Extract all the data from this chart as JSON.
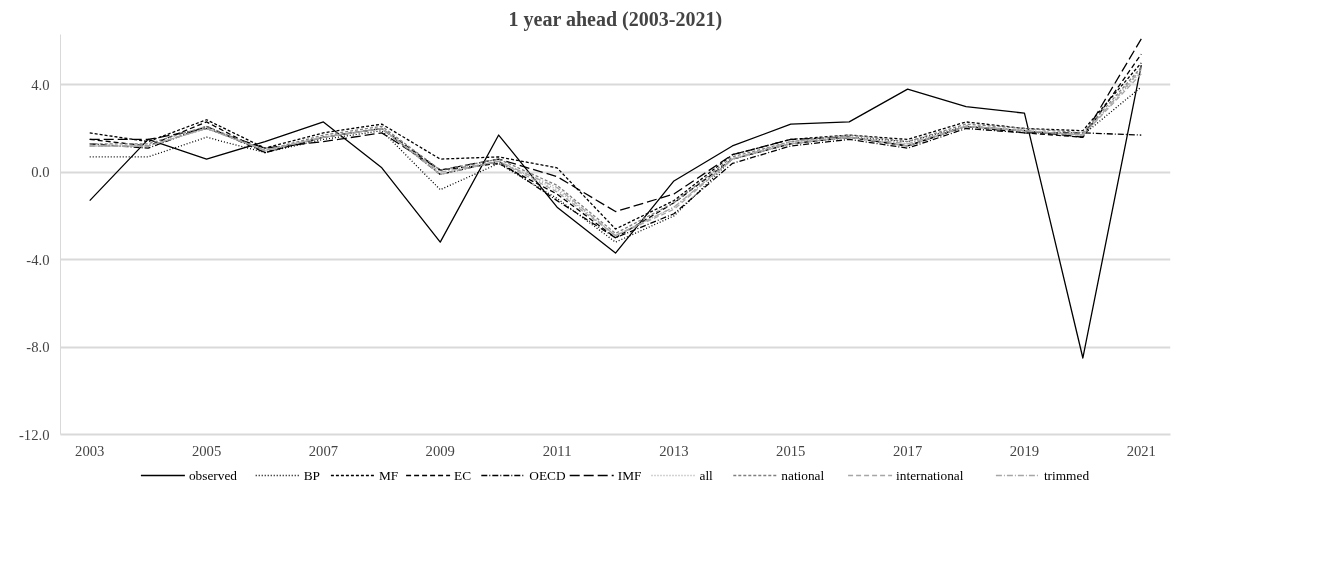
{
  "chart_data": {
    "type": "line",
    "title": "1 year ahead (2003-2021)",
    "x": [
      2003,
      2004,
      2005,
      2006,
      2007,
      2008,
      2009,
      2010,
      2011,
      2012,
      2013,
      2014,
      2015,
      2016,
      2017,
      2018,
      2019,
      2020,
      2021
    ],
    "xlim": [
      2002.5,
      2021.5
    ],
    "xticks": [
      2003,
      2005,
      2007,
      2009,
      2011,
      2013,
      2015,
      2017,
      2019,
      2021
    ],
    "ylim": [
      -12,
      6.3
    ],
    "yticks": [
      {
        "value": -12,
        "label": "-12.0"
      },
      {
        "value": -8,
        "label": "-8.0"
      },
      {
        "value": -4,
        "label": "-4.0"
      },
      {
        "value": 0,
        "label": "0.0"
      },
      {
        "value": 4,
        "label": "4.0"
      }
    ],
    "grid": "y",
    "legend": "bottom",
    "marker": "none",
    "series": [
      {
        "name": "observed",
        "color": "#000000",
        "line_style": "solid",
        "values": [
          -1.3,
          1.5,
          0.6,
          1.4,
          2.3,
          0.2,
          -3.2,
          1.7,
          -1.6,
          -3.7,
          -0.4,
          1.2,
          2.2,
          2.3,
          3.8,
          3.0,
          2.7,
          -8.5,
          4.9
        ]
      },
      {
        "name": "BP",
        "color": "#000000",
        "line_style": "dotted",
        "values": [
          0.7,
          0.7,
          1.6,
          0.9,
          1.5,
          1.9,
          -0.8,
          0.4,
          -1.2,
          -3.2,
          -2.0,
          0.6,
          1.3,
          1.6,
          1.4,
          2.1,
          1.9,
          1.7,
          3.9
        ]
      },
      {
        "name": "MF",
        "color": "#000000",
        "line_style": "dashed",
        "values": [
          1.8,
          1.4,
          2.4,
          1.1,
          1.8,
          2.2,
          0.6,
          0.7,
          0.2,
          -2.6,
          -1.3,
          0.8,
          1.5,
          1.7,
          1.5,
          2.3,
          2.0,
          1.9,
          5.0
        ]
      },
      {
        "name": "EC",
        "color": "#000000",
        "line_style": "mediumdash",
        "values": [
          1.5,
          1.2,
          2.3,
          0.9,
          1.6,
          2.0,
          0.1,
          0.4,
          -1.0,
          -3.0,
          -1.4,
          0.6,
          1.3,
          1.6,
          1.2,
          2.1,
          1.8,
          1.6,
          5.4
        ]
      },
      {
        "name": "OECD",
        "color": "#000000",
        "line_style": "dashdot",
        "values": [
          1.3,
          1.1,
          2.1,
          0.9,
          1.6,
          2.0,
          -0.1,
          0.5,
          -1.3,
          -3.0,
          -1.9,
          0.4,
          1.2,
          1.5,
          1.1,
          2.0,
          1.8,
          1.8,
          1.7
        ]
      },
      {
        "name": "IMF",
        "color": "#000000",
        "line_style": "longdash",
        "values": [
          1.5,
          1.5,
          2.0,
          1.1,
          1.4,
          1.8,
          0.1,
          0.6,
          -0.2,
          -1.8,
          -1.0,
          0.8,
          1.5,
          1.6,
          1.2,
          2.1,
          1.9,
          1.6,
          6.1
        ]
      },
      {
        "name": "all",
        "color": "#a6a6a6",
        "line_style": "dotted",
        "values": [
          1.2,
          1.2,
          2.0,
          1.0,
          1.6,
          2.0,
          -0.1,
          0.5,
          -0.8,
          -2.9,
          -1.6,
          0.6,
          1.4,
          1.6,
          1.3,
          2.1,
          1.9,
          1.7,
          4.6
        ]
      },
      {
        "name": "national",
        "color": "#7f7f7f",
        "line_style": "dashed",
        "values": [
          1.3,
          1.3,
          2.1,
          1.0,
          1.7,
          2.1,
          0.1,
          0.6,
          -0.6,
          -2.8,
          -1.4,
          0.7,
          1.4,
          1.7,
          1.4,
          2.2,
          2.0,
          1.8,
          4.8
        ]
      },
      {
        "name": "international",
        "color": "#a6a6a6",
        "line_style": "mediumdash",
        "values": [
          1.2,
          1.2,
          2.0,
          1.0,
          1.6,
          2.0,
          -0.1,
          0.5,
          -0.9,
          -2.9,
          -1.7,
          0.6,
          1.3,
          1.6,
          1.2,
          2.1,
          1.9,
          1.7,
          4.5
        ]
      },
      {
        "name": "trimmed",
        "color": "#a6a6a6",
        "line_style": "dashdot",
        "values": [
          1.2,
          1.2,
          2.0,
          1.0,
          1.6,
          2.0,
          0.0,
          0.5,
          -0.7,
          -2.9,
          -1.6,
          0.6,
          1.4,
          1.6,
          1.3,
          2.1,
          1.9,
          1.7,
          4.7
        ]
      }
    ]
  }
}
